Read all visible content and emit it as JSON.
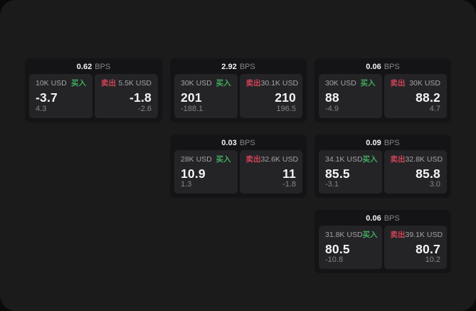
{
  "labels": {
    "unit": "BPS",
    "buy": "买入",
    "sell": "卖出"
  },
  "colors": {
    "page_bg": "#0a0a0b",
    "panel_bg": "#1b1b1c",
    "card_bg": "#141416",
    "tile_bg": "#242427",
    "buy_green": "#40ab5e",
    "sell_red": "#cf4356",
    "text_primary": "#f4f4f5",
    "text_label": "#a3a3a6",
    "text_muted": "#86868a"
  },
  "cards": [
    {
      "bps": "0.62",
      "buy": {
        "size": "10K USD",
        "value": "-3.7",
        "delta": "4.3"
      },
      "sell": {
        "size": "5.5K USD",
        "value": "-1.8",
        "delta": "-2.6"
      }
    },
    {
      "bps": "2.92",
      "buy": {
        "size": "30K USD",
        "value": "201",
        "delta": "-188.1"
      },
      "sell": {
        "size": "30.1K USD",
        "value": "210",
        "delta": "196.5"
      }
    },
    {
      "bps": "0.06",
      "buy": {
        "size": "30K USD",
        "value": "88",
        "delta": "-4.9"
      },
      "sell": {
        "size": "30K USD",
        "value": "88.2",
        "delta": "4.7"
      }
    },
    {
      "bps": "0.03",
      "buy": {
        "size": "28K USD",
        "value": "10.9",
        "delta": "1.3"
      },
      "sell": {
        "size": "32.6K USD",
        "value": "11",
        "delta": "-1.8"
      }
    },
    {
      "bps": "0.09",
      "buy": {
        "size": "34.1K USD",
        "value": "85.5",
        "delta": "-3.1"
      },
      "sell": {
        "size": "32.8K USD",
        "value": "85.8",
        "delta": "3.0"
      }
    },
    {
      "bps": "0.06",
      "buy": {
        "size": "31.8K USD",
        "value": "80.5",
        "delta": "-10.8"
      },
      "sell": {
        "size": "39.1K USD",
        "value": "80.7",
        "delta": "10.2"
      }
    }
  ]
}
